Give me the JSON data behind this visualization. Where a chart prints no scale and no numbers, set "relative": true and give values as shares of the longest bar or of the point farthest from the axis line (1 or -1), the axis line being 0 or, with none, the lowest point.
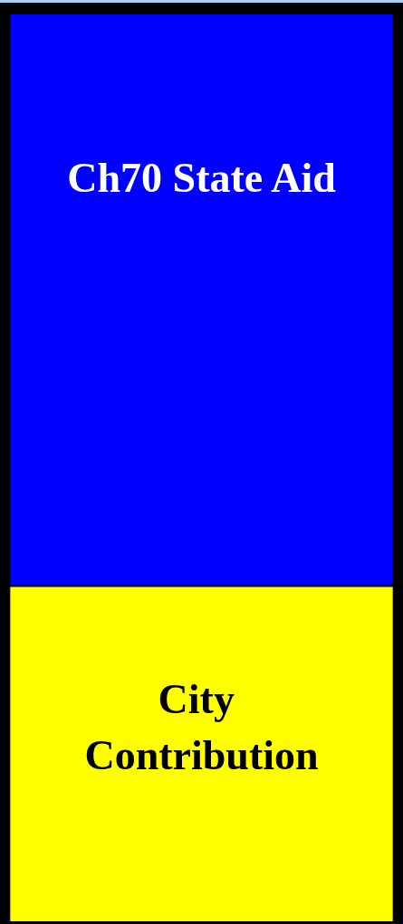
{
  "chart_data": {
    "type": "bar",
    "relative": true,
    "stacked": true,
    "categories": [
      null
    ],
    "series": [
      {
        "name": "City Contribution",
        "color": "#ffff00",
        "values": [
          0.37
        ]
      },
      {
        "name": "Ch70 State Aid",
        "color": "#0000ff",
        "values": [
          0.63
        ]
      }
    ]
  }
}
